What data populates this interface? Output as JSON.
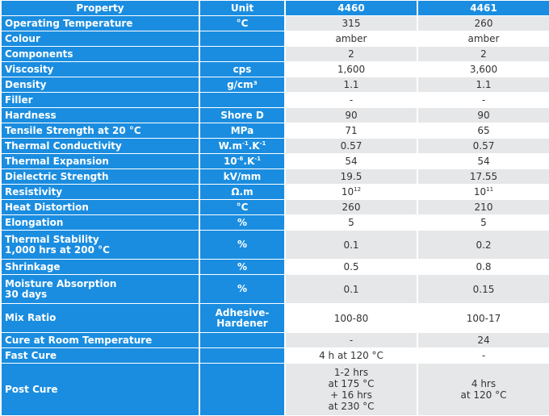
{
  "header": {
    "property": "Property",
    "unit": "Unit",
    "col1": "4460",
    "col2": "4461"
  },
  "rows": [
    {
      "property": "Operating Temperature",
      "unit": "°C",
      "v1": "315",
      "v2": "260"
    },
    {
      "property": "Colour",
      "unit": "",
      "v1": "amber",
      "v2": "amber"
    },
    {
      "property": "Components",
      "unit": "",
      "v1": "2",
      "v2": "2"
    },
    {
      "property": "Viscosity",
      "unit": "cps",
      "v1": "1,600",
      "v2": "3,600"
    },
    {
      "property": "Density",
      "unit": "g/cm³",
      "v1": "1.1",
      "v2": "1.1"
    },
    {
      "property": "Filler",
      "unit": "",
      "v1": "-",
      "v2": "-"
    },
    {
      "property": "Hardness",
      "unit": "Shore D",
      "v1": "90",
      "v2": "90"
    },
    {
      "property": "Tensile Strength at 20 °C",
      "unit": "MPa",
      "v1": "71",
      "v2": "65"
    },
    {
      "property": "Thermal Conductivity",
      "unit_parts": [
        "W.m",
        "-1",
        ".K",
        "-1"
      ],
      "v1": "0.57",
      "v2": "0.57"
    },
    {
      "property": "Thermal Expansion",
      "unit_parts": [
        "10",
        "-6",
        ".K",
        "-1"
      ],
      "v1": "54",
      "v2": "54"
    },
    {
      "property": "Dielectric Strength",
      "unit": "kV/mm",
      "v1": "19.5",
      "v2": "17.55"
    },
    {
      "property": "Resistivity",
      "unit": "Ω.m",
      "v1_parts": [
        "10",
        "12"
      ],
      "v2_parts": [
        "10",
        "11"
      ]
    },
    {
      "property": "Heat Distortion",
      "unit": "°C",
      "v1": "260",
      "v2": "210"
    },
    {
      "property": "Elongation",
      "unit": "%",
      "v1": "5",
      "v2": "5"
    },
    {
      "property_lines": [
        "Thermal Stability",
        "1,000 hrs at 200 °C"
      ],
      "unit": "%",
      "v1": "0.1",
      "v2": "0.2"
    },
    {
      "property": "Shrinkage",
      "unit": "%",
      "v1": "0.5",
      "v2": "0.8"
    },
    {
      "property_lines": [
        "Moisture Absorption",
        "30 days"
      ],
      "unit": "%",
      "v1": "0.1",
      "v2": "0.15"
    },
    {
      "property": "Mix Ratio",
      "unit_lines": [
        "Adhesive-",
        "Hardener"
      ],
      "v1": "100-80",
      "v2": "100-17"
    },
    {
      "property": "Cure at Room Temperature",
      "unit": "",
      "v1": "-",
      "v2": "24"
    },
    {
      "property": "Fast Cure",
      "unit": "",
      "v1": "4 h at 120 °C",
      "v2": "-"
    },
    {
      "property": "Post Cure",
      "unit": "",
      "v1_lines": [
        "1-2 hrs",
        "at 175 °C",
        "+ 16 hrs",
        "at 230 °C"
      ],
      "v2_lines": [
        "4 hrs",
        "at 120 °C"
      ]
    }
  ]
}
